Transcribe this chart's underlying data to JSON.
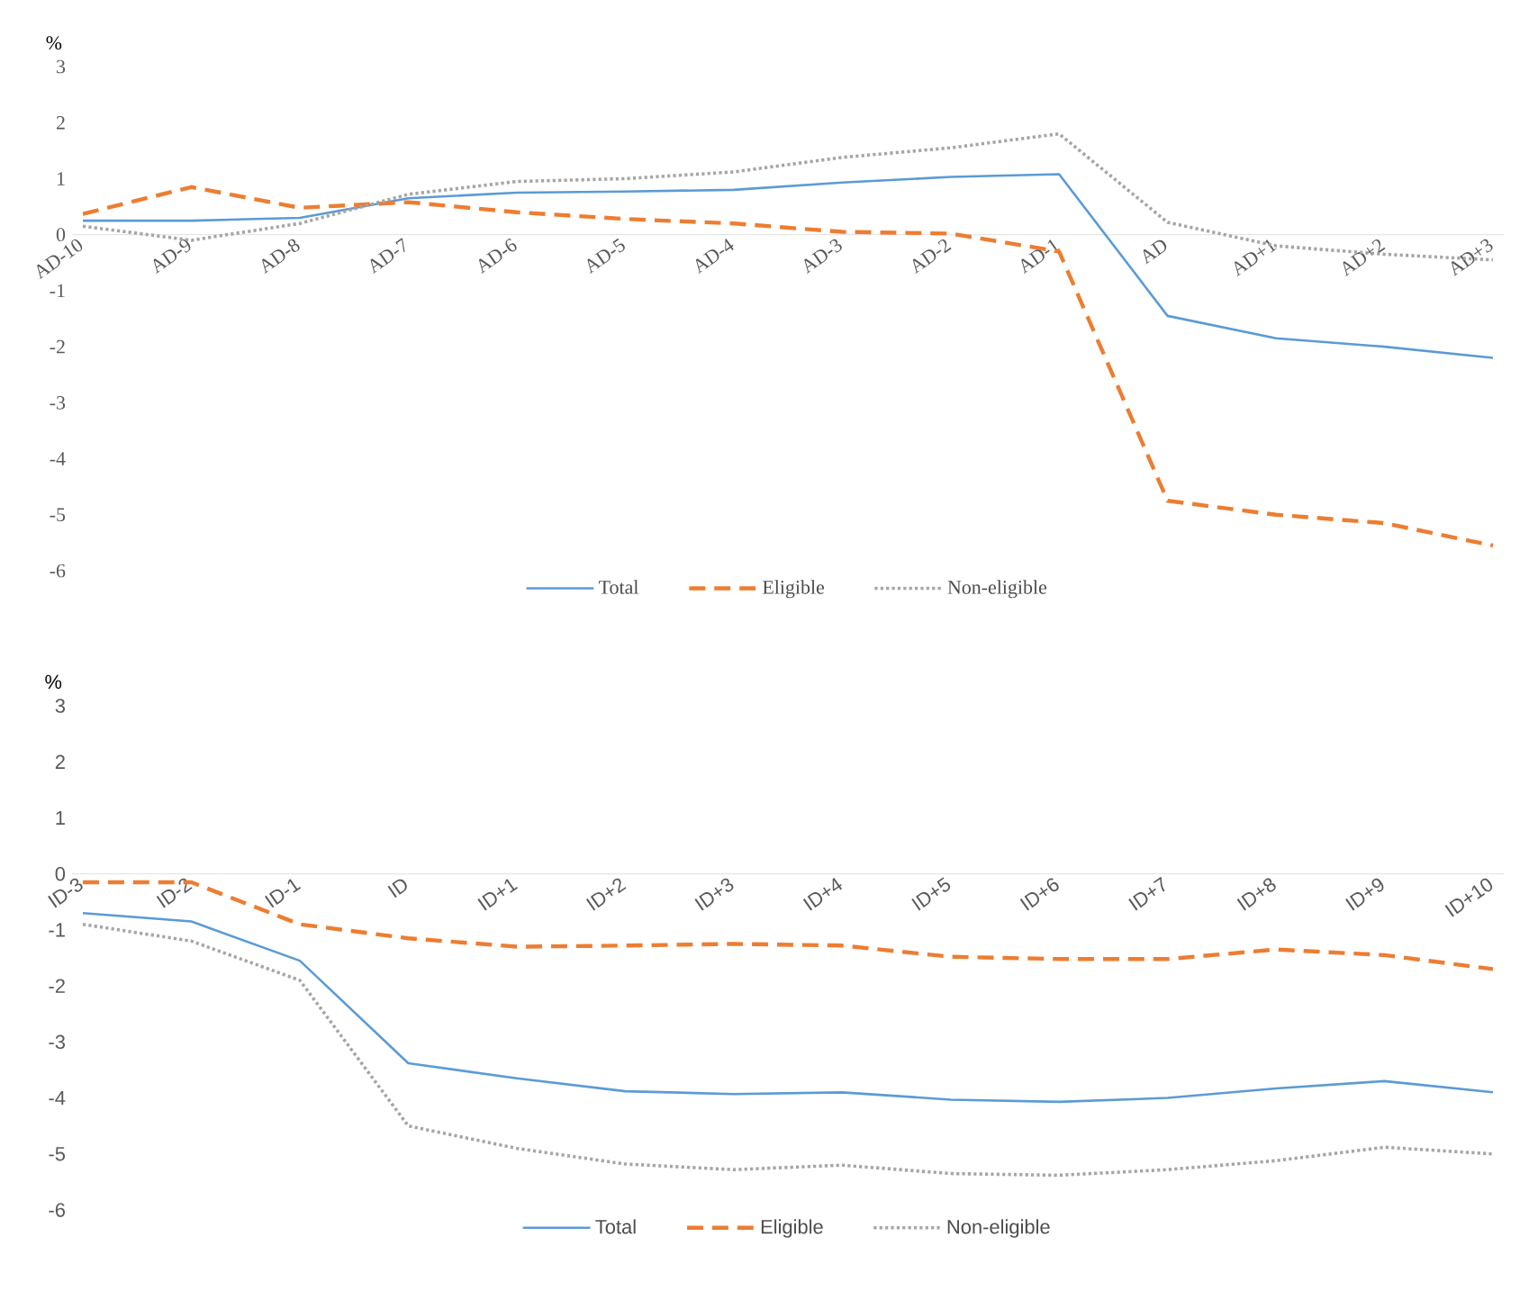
{
  "chart_data": [
    {
      "type": "line",
      "ylabel": "%",
      "categories": [
        "AD-10",
        "AD-9",
        "AD-8",
        "AD-7",
        "AD-6",
        "AD-5",
        "AD-4",
        "AD-3",
        "AD-2",
        "AD-1",
        "AD",
        "AD+1",
        "AD+2",
        "AD+3"
      ],
      "ylim": [
        -6,
        3
      ],
      "yticks": [
        -6,
        -5,
        -4,
        -3,
        -2,
        -1,
        0,
        1,
        2,
        3
      ],
      "grid": false,
      "legend": "bottom",
      "series": [
        {
          "name": "Total",
          "color": "#5b9bd5",
          "line_style": "solid",
          "values": [
            0.25,
            0.25,
            0.3,
            0.65,
            0.75,
            0.77,
            0.8,
            0.93,
            1.03,
            1.08,
            -1.45,
            -1.85,
            -2.0,
            -2.2
          ]
        },
        {
          "name": "Eligible",
          "color": "#ed7d31",
          "line_style": "dashed",
          "values": [
            0.37,
            0.85,
            0.48,
            0.58,
            0.4,
            0.28,
            0.2,
            0.05,
            0.02,
            -0.3,
            -4.75,
            -5.0,
            -5.15,
            -5.55
          ]
        },
        {
          "name": "Non-eligible",
          "color": "#a5a5a5",
          "line_style": "dotted",
          "values": [
            0.15,
            -0.1,
            0.2,
            0.72,
            0.95,
            1.0,
            1.12,
            1.38,
            1.55,
            1.8,
            0.22,
            -0.2,
            -0.35,
            -0.45
          ]
        }
      ]
    },
    {
      "type": "line",
      "ylabel": "%",
      "categories": [
        "ID-3",
        "ID-2",
        "ID-1",
        "ID",
        "ID+1",
        "ID+2",
        "ID+3",
        "ID+4",
        "ID+5",
        "ID+6",
        "ID+7",
        "ID+8",
        "ID+9",
        "ID+10"
      ],
      "ylim": [
        -6,
        3
      ],
      "yticks": [
        -6,
        -5,
        -4,
        -3,
        -2,
        -1,
        0,
        1,
        2,
        3
      ],
      "grid": false,
      "legend": "bottom",
      "series": [
        {
          "name": "Total",
          "color": "#5b9bd5",
          "line_style": "solid",
          "values": [
            -0.7,
            -0.85,
            -1.55,
            -3.38,
            -3.65,
            -3.88,
            -3.93,
            -3.9,
            -4.03,
            -4.07,
            -4.0,
            -3.83,
            -3.7,
            -3.9
          ]
        },
        {
          "name": "Eligible",
          "color": "#ed7d31",
          "line_style": "dashed",
          "values": [
            -0.15,
            -0.15,
            -0.9,
            -1.15,
            -1.3,
            -1.28,
            -1.25,
            -1.28,
            -1.48,
            -1.52,
            -1.52,
            -1.35,
            -1.45,
            -1.7
          ]
        },
        {
          "name": "Non-eligible",
          "color": "#a5a5a5",
          "line_style": "dotted",
          "values": [
            -0.9,
            -1.2,
            -1.9,
            -4.5,
            -4.9,
            -5.18,
            -5.28,
            -5.2,
            -5.35,
            -5.38,
            -5.28,
            -5.12,
            -4.88,
            -5.0
          ]
        }
      ]
    }
  ]
}
